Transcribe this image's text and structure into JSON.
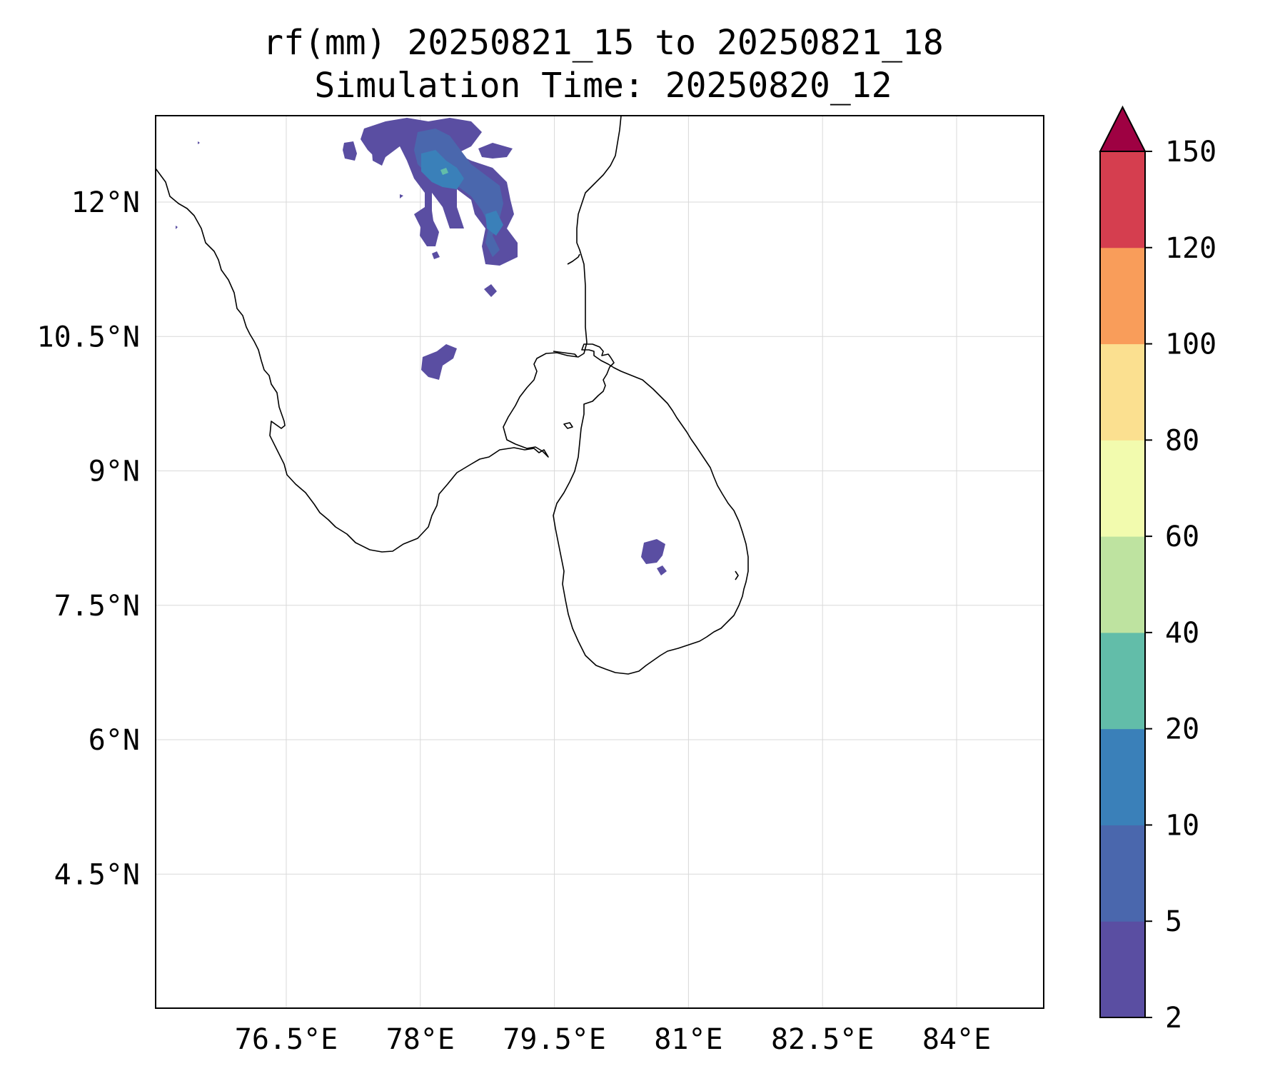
{
  "title": {
    "line1": "rf(mm) 20250821_15 to 20250821_18",
    "line2": "Simulation Time: 20250820_12"
  },
  "map": {
    "lon_ticks": [
      {
        "value": 76.5,
        "label": "76.5°E"
      },
      {
        "value": 78.0,
        "label": "78°E"
      },
      {
        "value": 79.5,
        "label": "79.5°E"
      },
      {
        "value": 81.0,
        "label": "81°E"
      },
      {
        "value": 82.5,
        "label": "82.5°E"
      },
      {
        "value": 84.0,
        "label": "84°E"
      }
    ],
    "lat_ticks": [
      {
        "value": 12.0,
        "label": "12°N"
      },
      {
        "value": 10.5,
        "label": "10.5°N"
      },
      {
        "value": 9.0,
        "label": "9°N"
      },
      {
        "value": 7.5,
        "label": "7.5°N"
      },
      {
        "value": 6.0,
        "label": "6°N"
      },
      {
        "value": 4.5,
        "label": "4.5°N"
      }
    ],
    "grid": true,
    "extent": {
      "lon_min": 75.0,
      "lon_max": 84.9,
      "lat_min": 3.0,
      "lat_max": 13.0
    },
    "rain_cells": [
      {
        "name": "north-cluster-west",
        "lon": 77.3,
        "lat": 12.55,
        "value_mm": 4
      },
      {
        "name": "north-cluster-main",
        "lon": 78.2,
        "lat": 12.5,
        "value_mm": 8
      },
      {
        "name": "north-cluster-core",
        "lon": 78.3,
        "lat": 12.35,
        "value_mm": 15
      },
      {
        "name": "north-cluster-east",
        "lon": 78.9,
        "lat": 11.9,
        "value_mm": 12
      },
      {
        "name": "small-cell-north",
        "lon": 78.85,
        "lat": 11.2,
        "value_mm": 4
      },
      {
        "name": "madurai-cell",
        "lon": 78.15,
        "lat": 10.3,
        "value_mm": 4
      },
      {
        "name": "sri-lanka-cell",
        "lon": 80.85,
        "lat": 8.05,
        "value_mm": 4
      }
    ]
  },
  "colorbar": {
    "levels": [
      {
        "label": "2",
        "color": "#5a4ea2"
      },
      {
        "label": "5",
        "color": "#4a67ad"
      },
      {
        "label": "10",
        "color": "#3a80b9"
      },
      {
        "label": "20",
        "color": "#62bda9"
      },
      {
        "label": "40",
        "color": "#bee3a0"
      },
      {
        "label": "60",
        "color": "#f2fbae"
      },
      {
        "label": "80",
        "color": "#fbe090"
      },
      {
        "label": "100",
        "color": "#f99d5a"
      },
      {
        "label": "120",
        "color": "#d53e4f"
      },
      {
        "label": "150",
        "color": "#9e0142"
      }
    ]
  }
}
